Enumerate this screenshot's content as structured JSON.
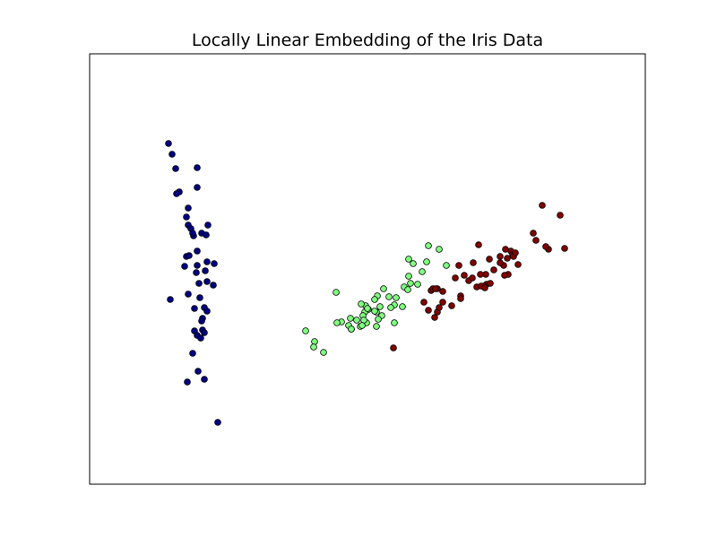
{
  "chart_data": {
    "type": "scatter",
    "title": "Locally Linear Embedding of the Iris Data",
    "xlabel": "",
    "ylabel": "",
    "xlim": [
      0,
      620
    ],
    "ylim": [
      0,
      480
    ],
    "xticks": [],
    "yticks": [],
    "grid": false,
    "legend": "none",
    "series": [
      {
        "color": "#000080",
        "x": [
          96,
          88,
          92,
          120,
          120,
          100,
          97,
          110,
          108,
          110,
          113,
          132,
          125,
          116,
          115,
          120,
          131,
          130,
          108,
          111,
          106,
          120,
          139,
          119,
          129,
          131,
          122,
          110,
          138,
          90,
          123,
          117,
          128,
          131,
          126,
          125,
          117,
          126,
          120,
          128,
          124,
          115,
          121,
          109,
          128,
          143
        ],
        "y": [
          352,
          380,
          368,
          353,
          331,
          326,
          324,
          308,
          298,
          289,
          285,
          289,
          280,
          277,
          280,
          260,
          248,
          278,
          254,
          255,
          243,
          244,
          246,
          236,
          238,
          226,
          224,
          212,
          222,
          206,
          208,
          196,
          197,
          193,
          185,
          182,
          171,
          172,
          166,
          169,
          163,
          146,
          126,
          114,
          117,
          69
        ]
      },
      {
        "color": "#80ff80",
        "x": [
          378,
          390,
          398,
          356,
          376,
          361,
          371,
          356,
          366,
          358,
          351,
          355,
          342,
          334,
          340,
          336,
          349,
          324,
          320,
          326,
          322,
          320,
          311,
          307,
          305,
          309,
          306,
          302,
          291,
          292,
          281,
          276,
          241,
          251,
          250,
          261,
          275,
          289,
          298,
          304,
          318,
          308,
          321,
          328,
          340,
          318,
          310,
          303,
          292
        ],
        "y": [
          266,
          262,
          244,
          251,
          248,
          246,
          237,
          232,
          223,
          224,
          220,
          217,
          208,
          209,
          200,
          197,
          198,
          198,
          192,
          188,
          184,
          176,
          195,
          192,
          188,
          180,
          183,
          176,
          185,
          173,
          181,
          180,
          171,
          159,
          153,
          147,
          214,
          177,
          183,
          177,
          193,
          199,
          210,
          218,
          180,
          206,
          196,
          201,
          173
        ]
      },
      {
        "color": "#800000",
        "x": [
          505,
          525,
          530,
          495,
          498,
          512,
          509,
          470,
          472,
          464,
          473,
          478,
          462,
          466,
          467,
          458,
          446,
          451,
          442,
          436,
          443,
          440,
          432,
          423,
          427,
          437,
          441,
          418,
          428,
          412,
          408,
          414,
          394,
          381,
          383,
          373,
          388,
          388,
          385,
          378,
          390,
          394,
          404,
          414,
          386,
          339,
          434,
          447,
          458,
          475,
          463
        ],
        "y": [
          311,
          300,
          263,
          280,
          272,
          262,
          265,
          260,
          256,
          262,
          254,
          245,
          244,
          252,
          234,
          254,
          251,
          239,
          234,
          234,
          223,
          221,
          220,
          227,
          230,
          221,
          219,
          233,
          247,
          244,
          230,
          210,
          215,
          216,
          218,
          203,
          218,
          192,
          186,
          194,
          197,
          203,
          199,
          207,
          218,
          152,
          267,
          224,
          247,
          258,
          233
        ]
      }
    ]
  }
}
